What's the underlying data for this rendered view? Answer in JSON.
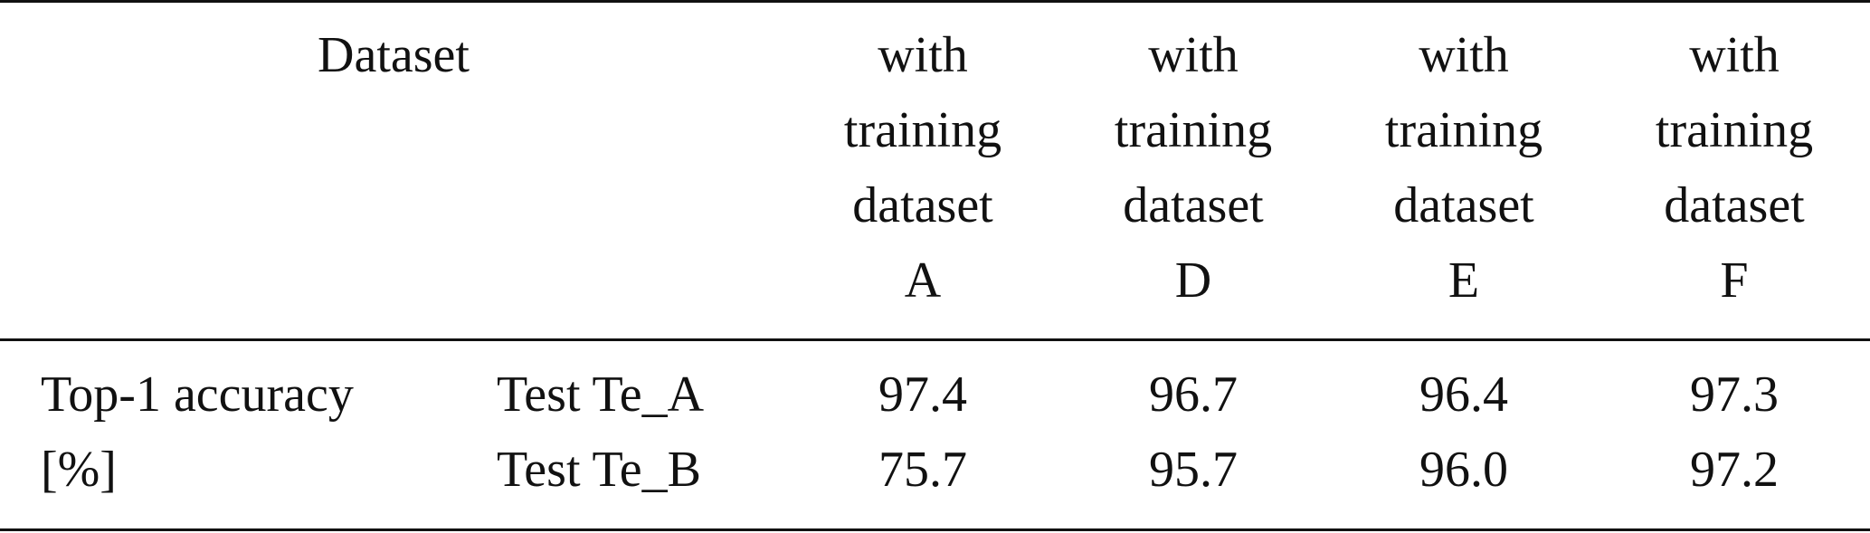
{
  "table": {
    "header": {
      "dataset_label": "Dataset",
      "columns": [
        {
          "line1": "with",
          "line2": "training",
          "line3": "dataset",
          "line4": "A"
        },
        {
          "line1": "with",
          "line2": "training",
          "line3": "dataset",
          "line4": "D"
        },
        {
          "line1": "with",
          "line2": "training",
          "line3": "dataset",
          "line4": "E"
        },
        {
          "line1": "with",
          "line2": "training",
          "line3": "dataset",
          "line4": "F"
        }
      ]
    },
    "metric": {
      "line1": "Top-1 accuracy",
      "line2": "[%]"
    },
    "rows": [
      {
        "test": "Test Te_A",
        "values": [
          "97.4",
          "96.7",
          "96.4",
          "97.3"
        ]
      },
      {
        "test": "Test Te_B",
        "values": [
          "75.7",
          "95.7",
          "96.0",
          "97.2"
        ]
      }
    ]
  }
}
